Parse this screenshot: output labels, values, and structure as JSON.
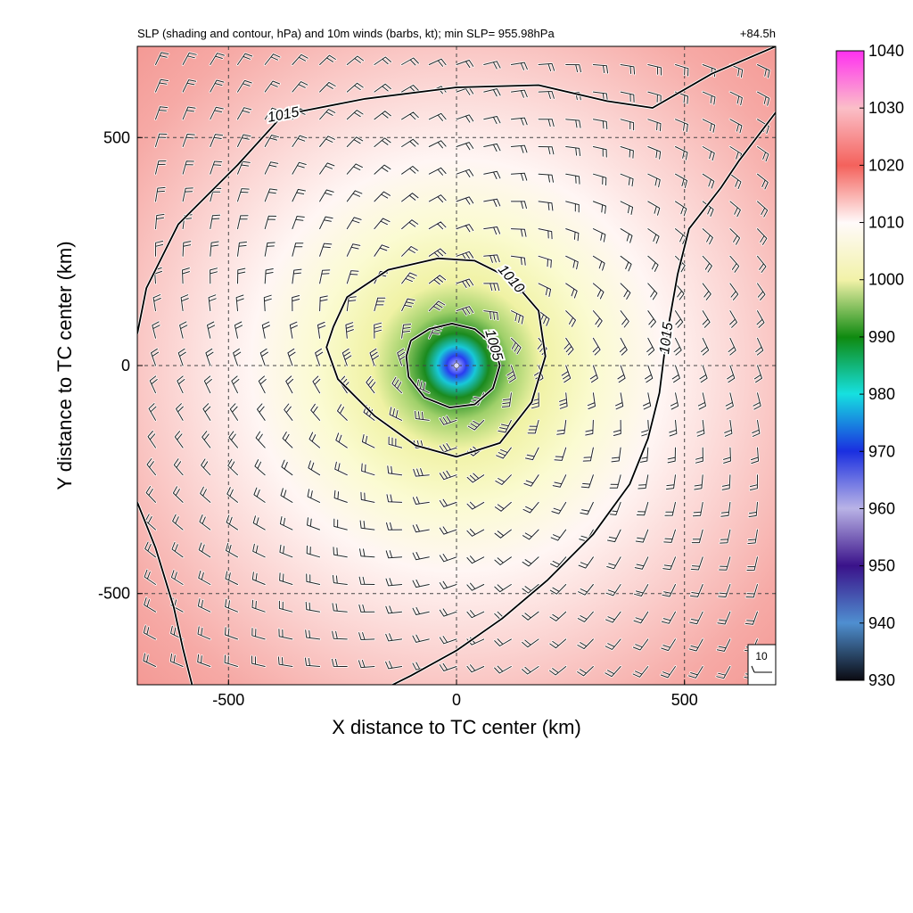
{
  "chart_data": {
    "type": "heatmap",
    "title": "SLP (shading and contour, hPa) and 10m winds (barbs, kt); min SLP= 955.98hPa",
    "time_label": "+84.5h",
    "xlabel": "X distance to TC center (km)",
    "ylabel": "Y distance to TC center (km)",
    "xlim": [
      -700,
      700
    ],
    "ylim": [
      -700,
      700
    ],
    "x_ticks": [
      -500,
      0,
      500
    ],
    "y_ticks": [
      -500,
      0,
      500
    ],
    "x_tick_labels": [
      "-500",
      "0",
      "500"
    ],
    "y_tick_labels": [
      "-500",
      "0",
      "500"
    ],
    "grid": "dashed",
    "min_slp_hpa": 955.98,
    "center_km": [
      0,
      0
    ],
    "colorbar": {
      "min": 930,
      "max": 1040,
      "ticks": [
        930,
        940,
        950,
        960,
        970,
        980,
        990,
        1000,
        1010,
        1020,
        1030,
        1040
      ],
      "tick_labels": [
        "930",
        "940",
        "950",
        "960",
        "970",
        "980",
        "990",
        "1000",
        "1010",
        "1020",
        "1030",
        "1040"
      ],
      "colors": [
        "#0b0b12",
        "#4f8fd0",
        "#3a128a",
        "#b9b3e6",
        "#1a2fe0",
        "#16e0e0",
        "#0f8a10",
        "#f2f2a8",
        "#fffafa",
        "#f4625c",
        "#fbbfc8",
        "#ff30f0"
      ]
    },
    "contours": [
      {
        "level": 1005,
        "label": "1005",
        "points": [
          [
            -100,
            55
          ],
          [
            -60,
            80
          ],
          [
            -10,
            92
          ],
          [
            40,
            80
          ],
          [
            82,
            45
          ],
          [
            95,
            0
          ],
          [
            80,
            -50
          ],
          [
            40,
            -85
          ],
          [
            -15,
            -92
          ],
          [
            -70,
            -70
          ],
          [
            -105,
            -25
          ],
          [
            -110,
            20
          ],
          [
            -100,
            55
          ]
        ]
      },
      {
        "level": 1010,
        "label": "1010",
        "points": [
          [
            -270,
            85
          ],
          [
            -240,
            150
          ],
          [
            -150,
            210
          ],
          [
            -40,
            235
          ],
          [
            40,
            230
          ],
          [
            120,
            190
          ],
          [
            180,
            120
          ],
          [
            195,
            20
          ],
          [
            165,
            -80
          ],
          [
            95,
            -170
          ],
          [
            0,
            -200
          ],
          [
            -90,
            -175
          ],
          [
            -180,
            -110
          ],
          [
            -260,
            -30
          ],
          [
            -285,
            40
          ],
          [
            -270,
            85
          ]
        ]
      },
      {
        "level": 1015,
        "label": "1015",
        "points": [
          [
            -700,
            70
          ],
          [
            -680,
            170
          ],
          [
            -610,
            310
          ],
          [
            -480,
            440
          ],
          [
            -380,
            550
          ],
          [
            -200,
            585
          ],
          [
            0,
            610
          ],
          [
            180,
            615
          ],
          [
            330,
            580
          ],
          [
            430,
            565
          ],
          [
            560,
            640
          ],
          [
            700,
            700
          ]
        ]
      },
      {
        "level": 1015,
        "label": "1015",
        "points": [
          [
            700,
            555
          ],
          [
            620,
            450
          ],
          [
            580,
            390
          ],
          [
            510,
            300
          ],
          [
            485,
            200
          ],
          [
            460,
            60
          ],
          [
            445,
            -60
          ],
          [
            420,
            -160
          ],
          [
            380,
            -260
          ],
          [
            300,
            -370
          ],
          [
            200,
            -470
          ],
          [
            100,
            -555
          ],
          [
            0,
            -625
          ],
          [
            -100,
            -680
          ],
          [
            -140,
            -700
          ]
        ]
      },
      {
        "level": 1015,
        "label": "",
        "points": [
          [
            -700,
            -300
          ],
          [
            -660,
            -400
          ],
          [
            -620,
            -530
          ],
          [
            -600,
            -620
          ],
          [
            -580,
            -700
          ]
        ]
      }
    ],
    "reference_barb": {
      "speed_kt": 10,
      "label": "10"
    },
    "wind_barbs": {
      "spacing_km": 60,
      "unit": "kt"
    }
  }
}
